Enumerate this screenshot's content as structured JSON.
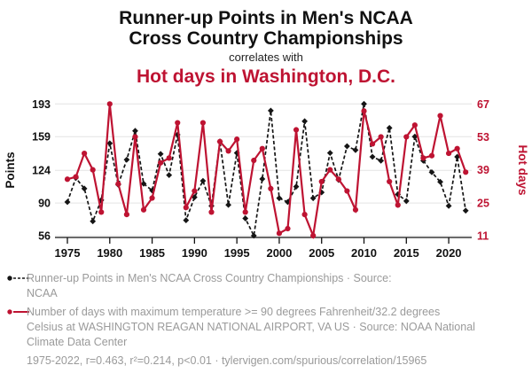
{
  "title": {
    "line1": "Runner-up Points in Men's NCAA",
    "line2": "Cross Country Championships",
    "connector": "correlates with",
    "subtitle": "Hot days in Washington, D.C."
  },
  "colors": {
    "accent_red": "#be1332",
    "series_black": "#151515",
    "gridline": "#e4e4e4",
    "axis": "#111111",
    "legend_text": "#9a9a9a"
  },
  "chart_data": {
    "type": "line",
    "x_label": "",
    "x_ticks": [
      1975,
      1980,
      1985,
      1990,
      1995,
      2000,
      2005,
      2010,
      2015,
      2020
    ],
    "years": [
      1975,
      1976,
      1977,
      1978,
      1979,
      1980,
      1981,
      1982,
      1983,
      1984,
      1985,
      1986,
      1987,
      1988,
      1989,
      1990,
      1991,
      1992,
      1993,
      1994,
      1995,
      1996,
      1997,
      1998,
      1999,
      2000,
      2001,
      2002,
      2003,
      2004,
      2005,
      2006,
      2007,
      2008,
      2009,
      2010,
      2011,
      2012,
      2013,
      2014,
      2015,
      2016,
      2017,
      2018,
      2019,
      2020,
      2021,
      2022
    ],
    "left_axis": {
      "label": "Points",
      "ticks": [
        56,
        90,
        124,
        159,
        193
      ],
      "range": [
        56,
        193
      ],
      "color": "#111111"
    },
    "right_axis": {
      "label": "Hot days",
      "ticks": [
        11,
        25,
        39,
        53,
        67
      ],
      "range": [
        11,
        67
      ],
      "color": "#be1332"
    },
    "grid": "horizontal-only",
    "legend_position": "below",
    "series": [
      {
        "name": "Runner-up Points in Men's NCAA Cross Country Championships",
        "axis": "left",
        "color": "#151515",
        "line_style": "dashed",
        "marker": "diamond",
        "values": [
          91,
          116,
          105,
          71,
          93,
          152,
          109,
          135,
          165,
          110,
          103,
          141,
          119,
          161,
          72,
          96,
          113,
          87,
          154,
          88,
          142,
          74,
          56,
          115,
          186,
          95,
          91,
          107,
          175,
          95,
          101,
          142,
          114,
          149,
          145,
          193,
          138,
          134,
          168,
          99,
          92,
          159,
          134,
          122,
          112,
          87,
          138,
          82
        ]
      },
      {
        "name": "Number of days with maximum temperature >= 90 degrees Fahrenheit/32.2 degrees Celsius at WASHINGTON REAGAN NATIONAL AIRPORT, VA US",
        "axis": "right",
        "color": "#be1332",
        "line_style": "solid",
        "marker": "circle",
        "values": [
          35,
          36,
          46,
          39,
          21,
          67,
          33,
          20,
          53,
          22,
          27,
          42,
          44,
          59,
          23,
          30,
          59,
          21,
          51,
          47,
          52,
          21,
          43,
          48,
          31,
          12,
          14,
          56,
          20,
          11,
          34,
          39,
          35,
          30,
          22,
          64,
          50,
          53,
          34,
          24,
          53,
          58,
          44,
          45,
          62,
          46,
          48,
          38
        ]
      }
    ]
  },
  "legend": {
    "series": [
      {
        "marker": "black-dot-dashed-line",
        "lines": [
          "Runner-up Points in Men's NCAA Cross Country Championships · Source:",
          "NCAA"
        ]
      },
      {
        "marker": "red-dot-solid-line",
        "lines": [
          "Number of days with maximum temperature >= 90 degrees Fahrenheit/32.2 degrees",
          "Celsius at WASHINGTON REAGAN NATIONAL AIRPORT, VA US · Source: NOAA National",
          "Climate Data Center"
        ]
      }
    ]
  },
  "footer": {
    "text": "1975-2022, r=0.463, r²=0.214, p<0.01 · tylervigen.com/spurious/correlation/15965"
  }
}
